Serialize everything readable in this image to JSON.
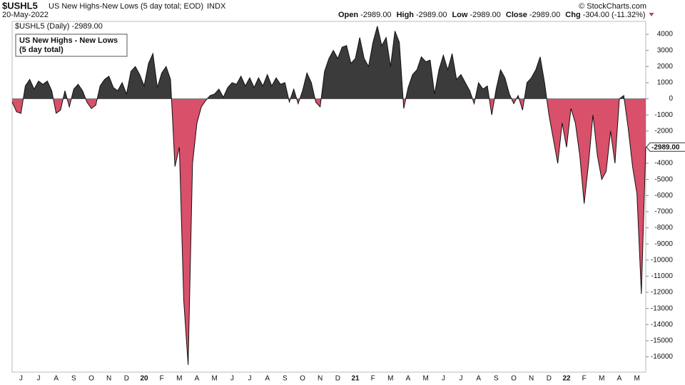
{
  "header": {
    "symbol": "$USHL5",
    "description": "US New Highs-New Lows (5 day total; EOD)",
    "exchange": "INDX",
    "date": "20-May-2022",
    "copyright": "© StockCharts.com",
    "quote": [
      {
        "label": "Open",
        "value": "-2989.00"
      },
      {
        "label": "High",
        "value": "-2989.00"
      },
      {
        "label": "Low",
        "value": "-2989.00"
      },
      {
        "label": "Close",
        "value": "-2989.00"
      },
      {
        "label": "Chg",
        "value": "-304.00 (-11.32%)"
      }
    ]
  },
  "chart_data": {
    "type": "area",
    "legend_label": "$USHL5 (Daily) -2989.00",
    "annotation": [
      "US New Highs - New Lows",
      "(5 day total)"
    ],
    "last_value_label": "-2989.00",
    "categories": [
      null,
      null,
      "J",
      null,
      null,
      null,
      "J",
      null,
      null,
      null,
      "A",
      null,
      null,
      null,
      "S",
      null,
      null,
      null,
      "O",
      null,
      null,
      null,
      "N",
      null,
      null,
      null,
      "D",
      null,
      null,
      null,
      "20",
      null,
      null,
      null,
      "F",
      null,
      null,
      null,
      "M",
      null,
      null,
      null,
      "A",
      null,
      null,
      null,
      "M",
      null,
      null,
      null,
      "J",
      null,
      null,
      null,
      "J",
      null,
      null,
      null,
      "A",
      null,
      null,
      null,
      "S",
      null,
      null,
      null,
      "O",
      null,
      null,
      null,
      "N",
      null,
      null,
      null,
      "D",
      null,
      null,
      null,
      "21",
      null,
      null,
      null,
      "F",
      null,
      null,
      null,
      "M",
      null,
      null,
      null,
      "A",
      null,
      null,
      null,
      "M",
      null,
      null,
      null,
      "J",
      null,
      null,
      null,
      "J",
      null,
      null,
      null,
      "A",
      null,
      null,
      null,
      "S",
      null,
      null,
      null,
      "O",
      null,
      null,
      null,
      "N",
      null,
      null,
      null,
      "D",
      null,
      null,
      null,
      "22",
      null,
      null,
      null,
      "F",
      null,
      null,
      null,
      "M",
      null,
      null,
      null,
      "A",
      null,
      null,
      null,
      "M",
      null,
      null
    ],
    "values": [
      -200,
      -800,
      -900,
      800,
      1200,
      600,
      1100,
      900,
      1100,
      500,
      -900,
      -700,
      500,
      -500,
      600,
      900,
      500,
      -200,
      -600,
      -400,
      800,
      1200,
      1400,
      700,
      500,
      1000,
      300,
      1700,
      2000,
      1500,
      800,
      2200,
      2800,
      700,
      1600,
      2000,
      1200,
      -4200,
      -3000,
      -12500,
      -16500,
      -4000,
      -1500,
      -500,
      -100,
      200,
      300,
      600,
      100,
      700,
      1000,
      900,
      1400,
      800,
      1300,
      700,
      1300,
      800,
      1500,
      800,
      1300,
      900,
      1000,
      -200,
      600,
      -300,
      500,
      1600,
      1000,
      -200,
      -500,
      1700,
      2500,
      3000,
      2500,
      3200,
      3300,
      2200,
      2500,
      3800,
      2500,
      2000,
      3500,
      4500,
      3300,
      3800,
      2000,
      4200,
      3500,
      -600,
      700,
      1500,
      1800,
      2600,
      2300,
      2400,
      300,
      1800,
      2700,
      1800,
      2800,
      1200,
      1500,
      1000,
      500,
      -300,
      1000,
      600,
      800,
      -1000,
      600,
      1800,
      1300,
      300,
      -300,
      200,
      -700,
      1000,
      1300,
      1800,
      2600,
      1000,
      -1000,
      -2500,
      -4000,
      -1500,
      -3000,
      -600,
      -1500,
      -3500,
      -6500,
      -4000,
      -1000,
      -3500,
      -5000,
      -4500,
      -2000,
      -4000,
      0,
      200,
      -1800,
      -4200,
      -5900,
      -12100,
      -2989
    ],
    "positive_color": "#3b3b3b",
    "negative_color": "#d9506a",
    "ylim": [
      -16950,
      4800
    ],
    "yticks": [
      -16000,
      -15000,
      -14000,
      -13000,
      -12000,
      -11000,
      -10000,
      -9000,
      -8000,
      -7000,
      -6000,
      -5000,
      -4000,
      -3000,
      -2000,
      -1000,
      0,
      1000,
      2000,
      3000,
      4000
    ]
  }
}
